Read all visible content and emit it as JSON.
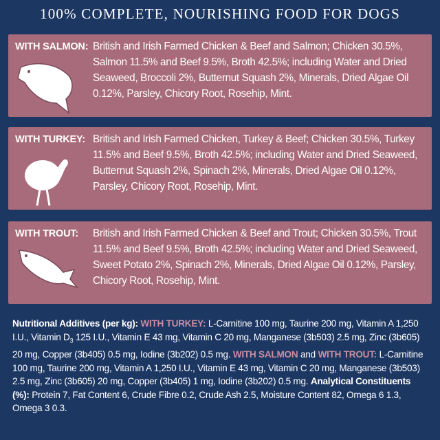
{
  "header": {
    "title": "100% COMPLETE, NOURISHING FOOD FOR DOGS"
  },
  "panels": [
    {
      "label": "WITH SALMON:",
      "text": "British and Irish Farmed Chicken & Beef and Salmon; Chicken 30.5%, Salmon 11.5% and Beef 9.5%, Broth 42.5%; including Water and Dried Seaweed, Broccoli 2%, Butternut Squash 2%, Minerals, Dried Algae Oil 0.12%, Parsley, Chicory Root, Rosehip, Mint."
    },
    {
      "label": "WITH TURKEY:",
      "text": "British and Irish Farmed Chicken, Turkey & Beef; Chicken 30.5%, Turkey 11.5% and Beef 9.5%, Broth 42.5%; including Water and Dried Seaweed, Butternut Squash 2%, Spinach 2%, Minerals, Dried Algae Oil 0.12%, Parsley, Chicory Root, Rosehip, Mint."
    },
    {
      "label": "WITH TROUT:",
      "text": "British and Irish Farmed Chicken & Beef and Trout; Chicken 30.5%, Trout 11.5% and Beef 9.5%, Broth 42.5%; including Water and Dried Seaweed, Sweet Potato 2%, Spinach 2%, Minerals, Dried Algae Oil 0.12%, Parsley, Chicory Root, Rosehip, Mint."
    }
  ],
  "nutrition": {
    "additives_heading": "Nutritional Additives (per kg):",
    "turkey_label": "WITH TURKEY:",
    "turkey_text_1": "L-Carnitine 100 mg, Taurine 200 mg, Vitamin A 1,250 I.U., Vitamin D",
    "vitamin_d_subscript": "3",
    "turkey_text_2": "125 I.U., Vitamin E 43 mg, Vitamin C 20 mg, Manganese (3b503) 2.5 mg, Zinc (3b605) 20 mg, Copper (3b405) 0.5 mg, Iodine (3b202) 0.5 mg.",
    "salmon_label": "WITH SALMON",
    "and": "and",
    "trout_label": "WITH TROUT:",
    "salmon_trout_text": "L-Carnitine 100 mg, Taurine 200 mg, Vitamin A 1,250 I.U., Vitamin E 43 mg, Vitamin C 20 mg, Manganese (3b503) 2.5 mg, Zinc (3b605) 20 mg, Copper (3b405) 1 mg, Iodine (3b202) 0.5 mg.",
    "constituents_heading": "Analytical Constituents (%):",
    "constituents_text": "Protein 7, Fat Content 6, Crude Fibre 0.2, Crude Ash 2.5, Moisture Content 82, Omega 6 1.3, Omega 3 0.3."
  }
}
